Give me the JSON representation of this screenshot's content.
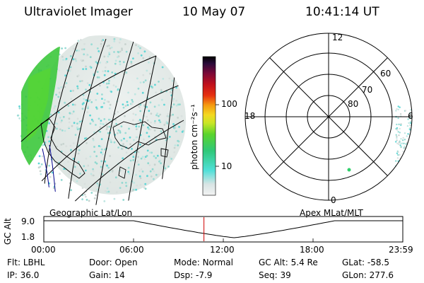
{
  "header": {
    "instrument": "Ultraviolet Imager",
    "date": "10 May 07",
    "time": "10:41:14 UT"
  },
  "colorbar": {
    "unit_label": "photon cm⁻²s⁻¹",
    "ticks": [
      "100",
      "10"
    ]
  },
  "polar_plot": {
    "mlt_labels": {
      "top": "12",
      "left": "18",
      "right": "6",
      "bottom": "0"
    },
    "lat_labels": [
      "60",
      "70",
      "80"
    ]
  },
  "panel_labels": {
    "left": "Geographic Lat/Lon",
    "right": "Apex MLat/MLT"
  },
  "altitude_track": {
    "axis_title": "GC Alt",
    "y_ticks": [
      "9.0",
      "1.8"
    ],
    "x_ticks": [
      "00:00",
      "06:00",
      "12:00",
      "18:00",
      "23:59"
    ],
    "current_time_fraction": 0.446,
    "marker_color": "#d00000"
  },
  "status": {
    "row1": [
      {
        "label": "Flt:",
        "value": "LBHL"
      },
      {
        "label": "Door:",
        "value": "Open"
      },
      {
        "label": "Mode:",
        "value": "Normal"
      },
      {
        "label": "GC Alt:",
        "value": "5.4 Re"
      },
      {
        "label": "GLat:",
        "value": "-58.5"
      }
    ],
    "row2": [
      {
        "label": "IP:",
        "value": "36.0"
      },
      {
        "label": "Gain:",
        "value": "14"
      },
      {
        "label": "Dsp:",
        "value": "-7.9"
      },
      {
        "label": "Seq:",
        "value": "39"
      },
      {
        "label": "GLon:",
        "value": "277.6"
      }
    ]
  }
}
